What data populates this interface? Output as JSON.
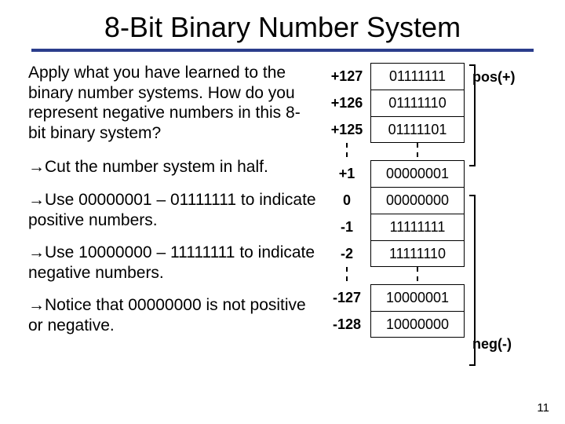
{
  "title": "8-Bit Binary Number System",
  "intro": "Apply what you have learned to the binary number systems. How do you represent negative numbers in this 8-bit binary system?",
  "bullets": [
    "Cut the number system in half.",
    "Use 00000001 – 01111111 to indicate positive numbers.",
    "Use 10000000 – 11111111 to indicate negative numbers.",
    "Notice that 00000000 is not positive or negative."
  ],
  "arrow_glyph": "→",
  "pos_label": "pos(+)",
  "neg_label": "neg(-)",
  "page_number": "11",
  "table": {
    "rows": [
      {
        "dec": "+127",
        "bin": "01111111",
        "group": "pos"
      },
      {
        "dec": "+126",
        "bin": "01111110",
        "group": "pos"
      },
      {
        "dec": "+125",
        "bin": "01111101",
        "group": "pos"
      },
      {
        "gap": true
      },
      {
        "dec": "+1",
        "bin": "00000001",
        "group": "pos"
      },
      {
        "dec": "0",
        "bin": "00000000",
        "group": "zero"
      },
      {
        "dec": "-1",
        "bin": "11111111",
        "group": "neg"
      },
      {
        "dec": "-2",
        "bin": "11111110",
        "group": "neg"
      },
      {
        "gap": true
      },
      {
        "dec": "-127",
        "bin": "10000001",
        "group": "neg"
      },
      {
        "dec": "-128",
        "bin": "10000000",
        "group": "neg"
      }
    ]
  },
  "colors": {
    "underline": "#2b3d8c",
    "text": "#000000",
    "background": "#ffffff"
  },
  "fonts": {
    "title_size_pt": 27,
    "body_size_pt": 16,
    "table_size_pt": 14
  }
}
